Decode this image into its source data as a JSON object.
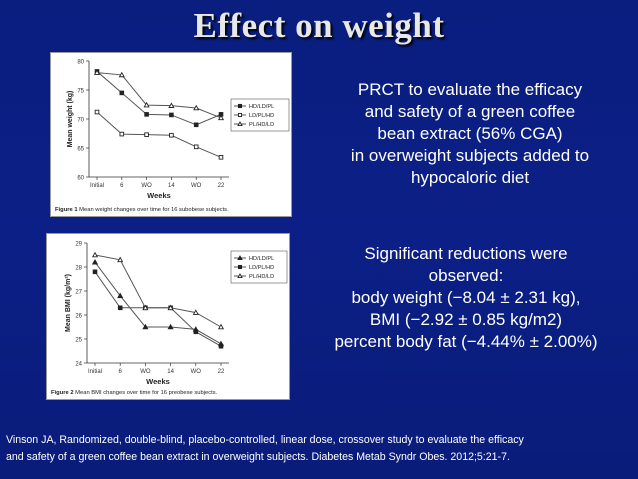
{
  "slide": {
    "title": "Effect on weight",
    "summary_lines": [
      "PRCT to evaluate the efficacy",
      "and safety of a green coffee",
      "bean extract  (56% CGA)",
      "in overweight subjects added to",
      "hypocaloric diet"
    ],
    "results_lines": [
      "Significant reductions were",
      "observed:",
      "body weight (−8.04 ± 2.31 kg),",
      "BMI (−2.92 ± 0.85 kg/m2)",
      "percent body fat (−4.44% ± 2.00%)"
    ],
    "citation_lines": [
      "Vinson JA, Randomized, double-blind, placebo-controlled, linear dose, crossover study to evaluate the efficacy",
      "and safety of a green coffee bean extract in overweight subjects. Diabetes Metab Syndr Obes. 2012;5:21-7."
    ]
  },
  "chart_data": [
    {
      "type": "line",
      "caption_label": "Figure 1",
      "caption_text": "Mean weight changes over time for 16 subobese subjects.",
      "xlabel": "Weeks",
      "ylabel": "Mean weight (kg)",
      "categories": [
        "Initial",
        "6",
        "WO",
        "14",
        "WO",
        "22"
      ],
      "ylim": [
        60,
        80
      ],
      "yticks": [
        60,
        65,
        70,
        75,
        80
      ],
      "grid": false,
      "legend_position": "right",
      "series": [
        {
          "name": "HD/LD/PL",
          "marker": "square",
          "values": [
            78.2,
            74.5,
            70.8,
            70.7,
            69.0,
            70.8
          ]
        },
        {
          "name": "LD/PL/HD",
          "marker": "square-open",
          "values": [
            71.2,
            67.4,
            67.3,
            67.2,
            65.2,
            63.4
          ]
        },
        {
          "name": "PL/HD/LD",
          "marker": "triangle-open",
          "values": [
            78.0,
            77.6,
            72.4,
            72.3,
            71.9,
            70.2
          ]
        }
      ]
    },
    {
      "type": "line",
      "caption_label": "Figure 2",
      "caption_text": "Mean BMI changes over time for 16 preobese subjects.",
      "xlabel": "Weeks",
      "ylabel": "Mean BMI (kg/m²)",
      "categories": [
        "Initial",
        "6",
        "WO",
        "14",
        "WO",
        "22"
      ],
      "ylim": [
        24,
        29
      ],
      "yticks": [
        24,
        25,
        26,
        27,
        28,
        29
      ],
      "grid": false,
      "legend_position": "top-right",
      "series": [
        {
          "name": "HD/LD/PL",
          "marker": "triangle",
          "values": [
            28.2,
            26.8,
            25.5,
            25.5,
            25.4,
            24.8
          ]
        },
        {
          "name": "LD/PL/HD",
          "marker": "square",
          "values": [
            27.8,
            26.3,
            26.3,
            26.3,
            25.3,
            24.7
          ]
        },
        {
          "name": "PL/HD/LD",
          "marker": "triangle-open",
          "values": [
            28.5,
            28.3,
            26.3,
            26.3,
            26.1,
            25.5
          ]
        }
      ]
    }
  ]
}
